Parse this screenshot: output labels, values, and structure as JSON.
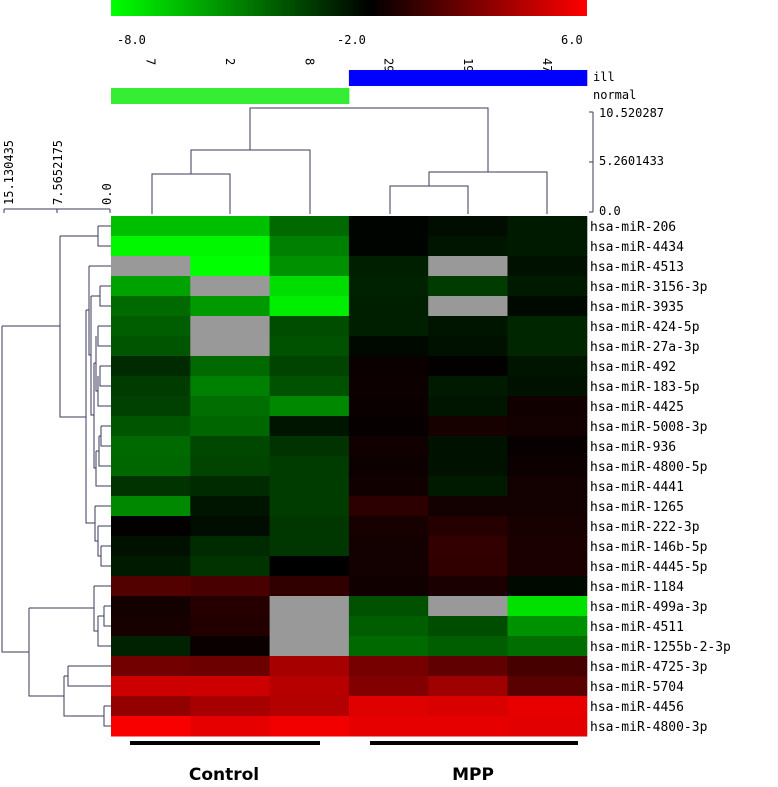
{
  "chart_data": {
    "type": "heatmap",
    "color_scale": {
      "min": -8.0,
      "mid": -2.0,
      "max": 6.0,
      "min_label": "-8.0",
      "mid_label": "-2.0",
      "max_label": "6.0",
      "low_color": "#00ff00",
      "mid_color": "#000000",
      "high_color": "#ff0000",
      "missing_color": "#999999"
    },
    "columns": [
      "7",
      "2",
      "8",
      "29",
      "19",
      "47"
    ],
    "column_group_legend": [
      {
        "label": "ill",
        "color": "#0000ff"
      },
      {
        "label": "normal",
        "color": "#33ee33"
      }
    ],
    "column_groups": [
      "normal",
      "normal",
      "normal",
      "ill",
      "ill",
      "ill"
    ],
    "column_tree_scale": [
      "10.520287",
      "5.2601433",
      "0.0"
    ],
    "row_tree_scale": [
      "15.130435",
      "7.5652175",
      "0.0"
    ],
    "group_labels": [
      "Control",
      "MPP"
    ],
    "rows": [
      "hsa-miR-206",
      "hsa-miR-4434",
      "hsa-miR-4513",
      "hsa-miR-3156-3p",
      "hsa-miR-3935",
      "hsa-miR-424-5p",
      "hsa-miR-27a-3p",
      "hsa-miR-492",
      "hsa-miR-183-5p",
      "hsa-miR-4425",
      "hsa-miR-5008-3p",
      "hsa-miR-936",
      "hsa-miR-4800-5p",
      "hsa-miR-4441",
      "hsa-miR-1265",
      "hsa-miR-222-3p",
      "hsa-miR-146b-5p",
      "hsa-miR-4445-5p",
      "hsa-miR-1184",
      "hsa-miR-499a-3p",
      "hsa-miR-4511",
      "hsa-miR-1255b-2-3p",
      "hsa-miR-4725-3p",
      "hsa-miR-5704",
      "hsa-miR-4456",
      "hsa-miR-4800-3p"
    ],
    "values": [
      [
        -6.5,
        -6.5,
        -4.5,
        -2.1,
        -2.3,
        -2.6
      ],
      [
        -7.8,
        -7.8,
        -5.0,
        -2.1,
        -2.5,
        -2.6
      ],
      [
        null,
        -8.0,
        -5.4,
        -2.7,
        null,
        -2.4
      ],
      [
        -5.8,
        null,
        -7.2,
        -2.8,
        -3.4,
        -2.6
      ],
      [
        -4.5,
        -5.6,
        -7.6,
        -2.7,
        null,
        -2.2
      ],
      [
        -4.2,
        null,
        -3.8,
        -2.7,
        -2.5,
        -2.9
      ],
      [
        -4.0,
        null,
        -3.9,
        -2.2,
        -2.4,
        -2.9
      ],
      [
        -3.0,
        -4.5,
        -3.6,
        -1.7,
        -1.9,
        -2.5
      ],
      [
        -3.4,
        -5.0,
        -3.9,
        -1.6,
        -2.6,
        -2.4
      ],
      [
        -3.5,
        -4.6,
        -5.2,
        -1.7,
        -2.5,
        -1.5
      ],
      [
        -4.0,
        -4.4,
        -2.5,
        -1.8,
        -1.3,
        -1.4
      ],
      [
        -4.5,
        -3.7,
        -3.2,
        -1.5,
        -2.4,
        -1.8
      ],
      [
        -4.4,
        -3.6,
        -3.4,
        -1.6,
        -2.4,
        -1.6
      ],
      [
        -3.2,
        -3.0,
        -3.4,
        -1.5,
        -2.6,
        -1.4
      ],
      [
        -5.2,
        -2.5,
        -3.4,
        -0.6,
        -1.4,
        -1.4
      ],
      [
        -1.9,
        -2.3,
        -3.3,
        -1.3,
        -0.8,
        -1.3
      ],
      [
        -2.4,
        -3.0,
        -3.3,
        -1.4,
        -0.4,
        -1.2
      ],
      [
        -2.6,
        -3.2,
        -2.0,
        -1.4,
        -0.5,
        -1.2
      ],
      [
        0.6,
        0.3,
        -0.5,
        -1.5,
        -1.2,
        -2.2
      ],
      [
        -1.4,
        -0.8,
        null,
        -3.9,
        null,
        -7.3
      ],
      [
        -1.3,
        -0.9,
        null,
        -4.2,
        -3.8,
        -5.4
      ],
      [
        -2.8,
        -1.7,
        null,
        -4.5,
        -4.2,
        -4.6
      ],
      [
        1.6,
        1.4,
        3.2,
        1.7,
        1.0,
        0.2
      ],
      [
        4.4,
        4.4,
        3.7,
        2.1,
        3.0,
        0.8
      ],
      [
        2.6,
        3.2,
        3.6,
        5.0,
        4.8,
        5.2
      ],
      [
        5.8,
        5.2,
        5.6,
        5.2,
        5.2,
        5.1
      ]
    ]
  }
}
